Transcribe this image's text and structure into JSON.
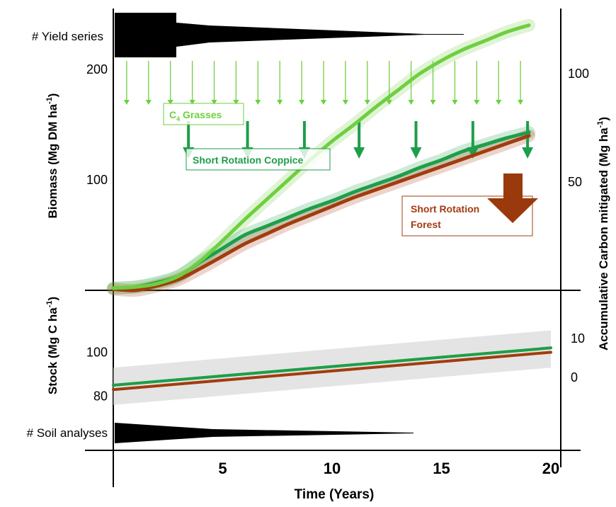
{
  "colors": {
    "c4_grasses": "#6fcf3f",
    "coppice": "#1e9e4a",
    "forest": "#a23c10",
    "axis": "#000000",
    "band_grey": "#d6d6d6"
  },
  "labels": {
    "yield_series": "# Yield series",
    "soil_analyses": "# Soil analyses",
    "c4_main": "C",
    "c4_sub": "4",
    "c4_rest": " Grasses",
    "coppice": "Short Rotation Coppice",
    "forest_line1": "Short Rotation",
    "forest_line2": "Forest"
  },
  "chart_data": [
    {
      "type": "line",
      "panel": "top",
      "xlabel": "Time (Years)",
      "ylabel": "Biomass (Mg DM ha",
      "ylabel_sup": "-1",
      "ylabel_end": ")",
      "y2label": "Accumulative Carbon mitigated (Mg ha",
      "y2label_sup": "-1",
      "y2label_end": ")",
      "xlim": [
        0,
        20
      ],
      "ylim": [
        0,
        245
      ],
      "y2lim": [
        0,
        122
      ],
      "y_ticks": [
        "200",
        "100"
      ],
      "y_tick_values": [
        200,
        100
      ],
      "y2_ticks": [
        "100",
        "50"
      ],
      "y2_tick_values": [
        100,
        50
      ],
      "series": [
        {
          "name": "C4 Grasses",
          "color": "#6fcf3f",
          "x": [
            0,
            1,
            2,
            3,
            4,
            5,
            6,
            7,
            8,
            9,
            10,
            11,
            12,
            13,
            14,
            15,
            16,
            17,
            18,
            19
          ],
          "y": [
            2,
            3,
            6,
            13,
            27,
            45,
            64,
            82,
            100,
            118,
            135,
            150,
            166,
            181,
            196,
            208,
            218,
            226,
            234,
            240
          ]
        },
        {
          "name": "Short Rotation Coppice",
          "color": "#1e9e4a",
          "x": [
            0,
            1,
            2,
            3,
            4,
            5,
            6,
            7,
            8,
            9,
            10,
            11,
            12,
            13,
            14,
            15,
            16,
            17,
            18,
            19
          ],
          "y": [
            2,
            3,
            7,
            13,
            26,
            38,
            50,
            58,
            66,
            74,
            81,
            89,
            96,
            103,
            111,
            118,
            126,
            132,
            138,
            143
          ]
        },
        {
          "name": "Short Rotation Forest",
          "color": "#a23c10",
          "x": [
            0,
            1,
            2,
            3,
            4,
            5,
            6,
            7,
            8,
            9,
            10,
            11,
            12,
            13,
            14,
            15,
            16,
            17,
            18,
            19
          ],
          "y": [
            1,
            0,
            4,
            10,
            20,
            31,
            42,
            51,
            60,
            68,
            76,
            84,
            91,
            98,
            105,
            112,
            119,
            126,
            133,
            140
          ]
        }
      ]
    },
    {
      "type": "line",
      "panel": "bottom",
      "xlabel": "Time (Years)",
      "ylabel": "Stock (Mg C ha",
      "ylabel_sup": "-1",
      "ylabel_end": ")",
      "xlim": [
        0,
        20
      ],
      "x_ticks": [
        "5",
        "10",
        "15",
        "20"
      ],
      "x_tick_values": [
        5,
        10,
        15,
        20
      ],
      "ylim": [
        60,
        130
      ],
      "y_ticks": [
        "100",
        "80"
      ],
      "y_tick_values": [
        100,
        80
      ],
      "y2_ticks": [
        "10",
        "0"
      ],
      "y2_tick_values": [
        10,
        0
      ],
      "series": [
        {
          "name": "C4 Grasses",
          "color": "#6fcf3f",
          "x": [
            0,
            20
          ],
          "y": [
            85,
            102
          ]
        },
        {
          "name": "Short Rotation Coppice",
          "color": "#1e9e4a",
          "x": [
            0,
            20
          ],
          "y": [
            85,
            102
          ]
        },
        {
          "name": "Short Rotation Forest",
          "color": "#a23c10",
          "x": [
            0,
            20
          ],
          "y": [
            83,
            100
          ]
        }
      ]
    }
  ]
}
